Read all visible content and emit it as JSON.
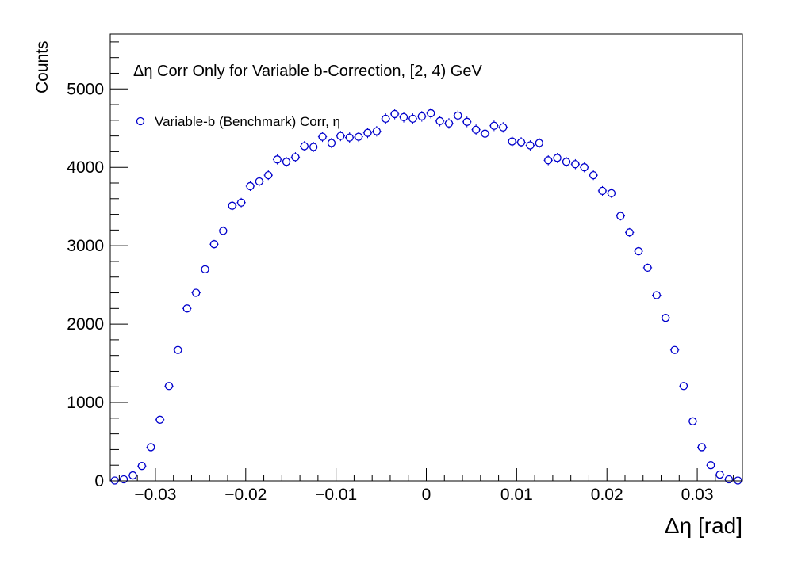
{
  "chart_data": {
    "type": "scatter",
    "title": "Δη Corr Only for Variable b-Correction, [2, 4) GeV",
    "xlabel": "Δη  [rad]",
    "ylabel": "Counts",
    "xlim": [
      -0.035,
      0.035
    ],
    "ylim": [
      0,
      5700
    ],
    "x_ticks": [
      -0.03,
      -0.02,
      -0.01,
      0,
      0.01,
      0.02,
      0.03
    ],
    "x_tick_labels": [
      "−0.03",
      "−0.02",
      "−0.01",
      "0",
      "0.01",
      "0.02",
      "0.03"
    ],
    "y_ticks": [
      0,
      1000,
      2000,
      3000,
      4000,
      5000
    ],
    "y_tick_labels": [
      "0",
      "1000",
      "2000",
      "3000",
      "4000",
      "5000"
    ],
    "grid": false,
    "legend_position": "top-left",
    "marker": "open-circle",
    "color": "#0000cc",
    "series": [
      {
        "name": "Variable-b (Benchmark) Corr, η",
        "x": [
          -0.0345,
          -0.0335,
          -0.0325,
          -0.0315,
          -0.0305,
          -0.0295,
          -0.0285,
          -0.0275,
          -0.0265,
          -0.0255,
          -0.0245,
          -0.0235,
          -0.0225,
          -0.0215,
          -0.0205,
          -0.0195,
          -0.0185,
          -0.0175,
          -0.0165,
          -0.0155,
          -0.0145,
          -0.0135,
          -0.0125,
          -0.0115,
          -0.0105,
          -0.0095,
          -0.0085,
          -0.0075,
          -0.0065,
          -0.0055,
          -0.0045,
          -0.0035,
          -0.0025,
          -0.0015,
          -0.0005,
          0.0005,
          0.0015,
          0.0025,
          0.0035,
          0.0045,
          0.0055,
          0.0065,
          0.0075,
          0.0085,
          0.0095,
          0.0105,
          0.0115,
          0.0125,
          0.0135,
          0.0145,
          0.0155,
          0.0165,
          0.0175,
          0.0185,
          0.0195,
          0.0205,
          0.0215,
          0.0225,
          0.0235,
          0.0245,
          0.0255,
          0.0265,
          0.0275,
          0.0285,
          0.0295,
          0.0305,
          0.0315,
          0.0325,
          0.0335,
          0.0345
        ],
        "y": [
          5,
          20,
          70,
          190,
          430,
          780,
          1210,
          1670,
          2200,
          2400,
          2700,
          3020,
          3190,
          3510,
          3550,
          3760,
          3820,
          3900,
          4100,
          4070,
          4130,
          4270,
          4260,
          4390,
          4310,
          4400,
          4380,
          4390,
          4440,
          4460,
          4620,
          4680,
          4640,
          4620,
          4650,
          4690,
          4590,
          4560,
          4660,
          4580,
          4480,
          4430,
          4530,
          4510,
          4330,
          4320,
          4280,
          4310,
          4090,
          4120,
          4070,
          4040,
          4000,
          3900,
          3700,
          3670,
          3380,
          3170,
          2930,
          2720,
          2370,
          2080,
          1670,
          1210,
          760,
          430,
          200,
          80,
          20,
          5
        ],
        "yerr": [
          2,
          5,
          8,
          14,
          20,
          28,
          35,
          41,
          47,
          49,
          52,
          55,
          56,
          59,
          60,
          61,
          62,
          62,
          64,
          64,
          64,
          65,
          65,
          66,
          66,
          66,
          66,
          66,
          67,
          67,
          68,
          68,
          68,
          68,
          68,
          68,
          68,
          68,
          68,
          68,
          67,
          67,
          67,
          67,
          66,
          66,
          65,
          66,
          64,
          64,
          64,
          64,
          63,
          62,
          61,
          61,
          58,
          56,
          54,
          52,
          49,
          46,
          41,
          35,
          28,
          21,
          14,
          9,
          5,
          2
        ]
      }
    ]
  }
}
